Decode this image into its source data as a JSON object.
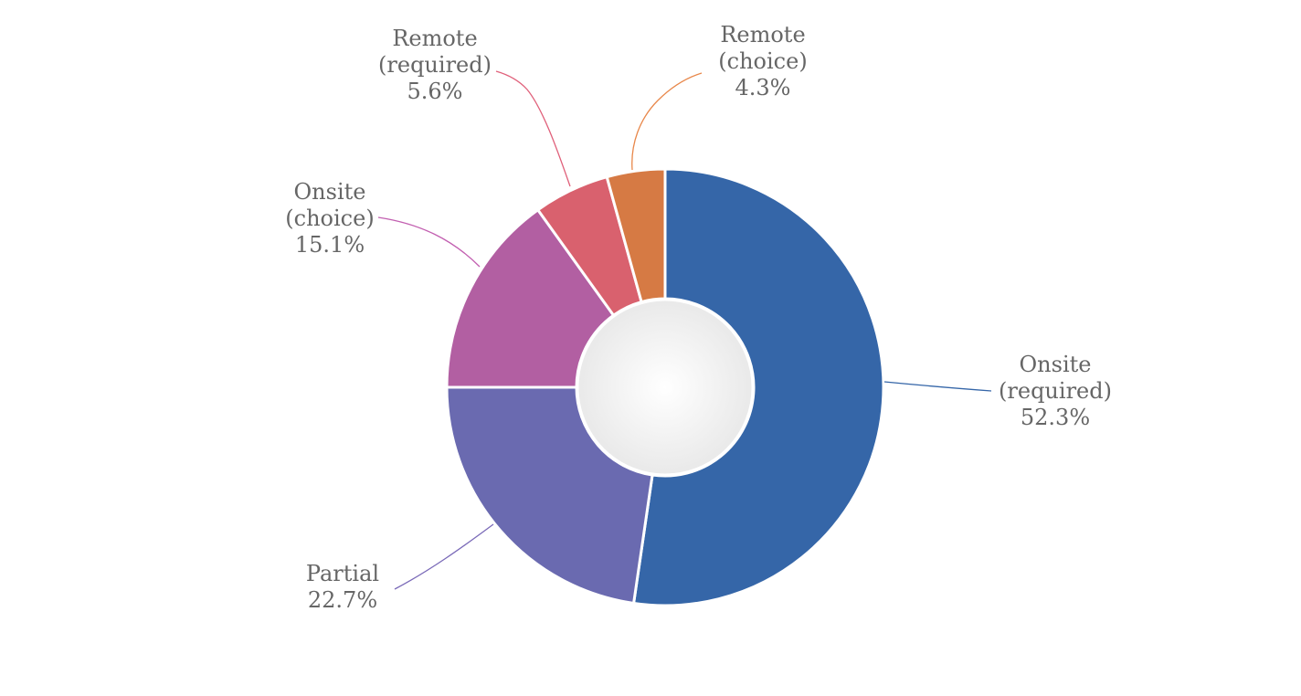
{
  "chart_data": {
    "type": "pie",
    "variant": "donut",
    "title": "",
    "legend": "none",
    "start_angle_deg": 0,
    "direction": "clockwise",
    "slices": [
      {
        "label_lines": [
          "Onsite",
          "(required)"
        ],
        "value": 52.3,
        "value_label": "52.3%",
        "color": "#3566a8"
      },
      {
        "label_lines": [
          "Partial"
        ],
        "value": 22.7,
        "value_label": "22.7%",
        "color": "#6a6ab0"
      },
      {
        "label_lines": [
          "Onsite",
          "(choice)"
        ],
        "value": 15.1,
        "value_label": "15.1%",
        "color": "#b25fa2"
      },
      {
        "label_lines": [
          "Remote",
          "(required)"
        ],
        "value": 5.6,
        "value_label": "5.6%",
        "color": "#d9616e"
      },
      {
        "label_lines": [
          "Remote",
          "(choice)"
        ],
        "value": 4.3,
        "value_label": "4.3%",
        "color": "#d67a44"
      }
    ],
    "leader_colors": [
      "#3566a8",
      "#7a6ab8",
      "#c25fb0",
      "#e0607a",
      "#e8874a"
    ],
    "hole_color": "#f0f0f0"
  }
}
